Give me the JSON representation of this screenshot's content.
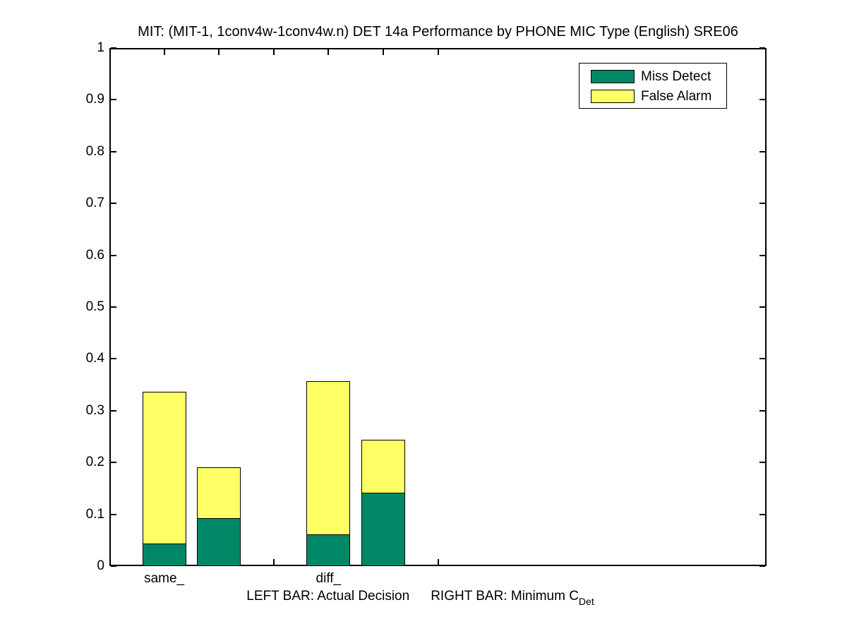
{
  "figure": {
    "caption_left": "LEFT BAR: Actual Decision",
    "caption_right": "RIGHT BAR: Minimum C",
    "caption_subscript": "Det",
    "background_color": "#ffffff",
    "axis_color": "#000000"
  },
  "chart_data": {
    "type": "bar",
    "stacked": true,
    "title": "MIT: (MIT-1, 1conv4w-1conv4w.n) DET 14a Performance by PHONE MIC Type (English) SRE06",
    "xlabel": "",
    "ylabel": "",
    "ylim": [
      0,
      1
    ],
    "yticks": [
      0,
      0.1,
      0.2,
      0.3,
      0.4,
      0.5,
      0.6,
      0.7,
      0.8,
      0.9,
      1
    ],
    "xlim": [
      0,
      12
    ],
    "xticks": [
      1,
      2,
      3,
      4,
      5,
      6
    ],
    "xtick_labels": {
      "1": "same_",
      "4": "diff_"
    },
    "bar_width": 0.8,
    "grid": false,
    "legend_position": "top-right",
    "categories": [
      "same_",
      "diff_"
    ],
    "series": [
      {
        "name": "Miss Detect",
        "color": "#008866",
        "values": [
          0.042,
          0.091,
          0.06,
          0.14
        ]
      },
      {
        "name": "False Alarm",
        "color": "#ffff66",
        "values": [
          0.295,
          0.1,
          0.297,
          0.104
        ]
      }
    ],
    "bars": [
      {
        "x": 1,
        "group": "same_",
        "bar_role": "actual-decision",
        "miss_detect": 0.042,
        "false_alarm": 0.295,
        "total": 0.337
      },
      {
        "x": 2,
        "group": "same_",
        "bar_role": "minimum-cdet",
        "miss_detect": 0.091,
        "false_alarm": 0.1,
        "total": 0.191
      },
      {
        "x": 4,
        "group": "diff_",
        "bar_role": "actual-decision",
        "miss_detect": 0.06,
        "false_alarm": 0.297,
        "total": 0.357
      },
      {
        "x": 5,
        "group": "diff_",
        "bar_role": "minimum-cdet",
        "miss_detect": 0.14,
        "false_alarm": 0.104,
        "total": 0.244
      }
    ]
  }
}
